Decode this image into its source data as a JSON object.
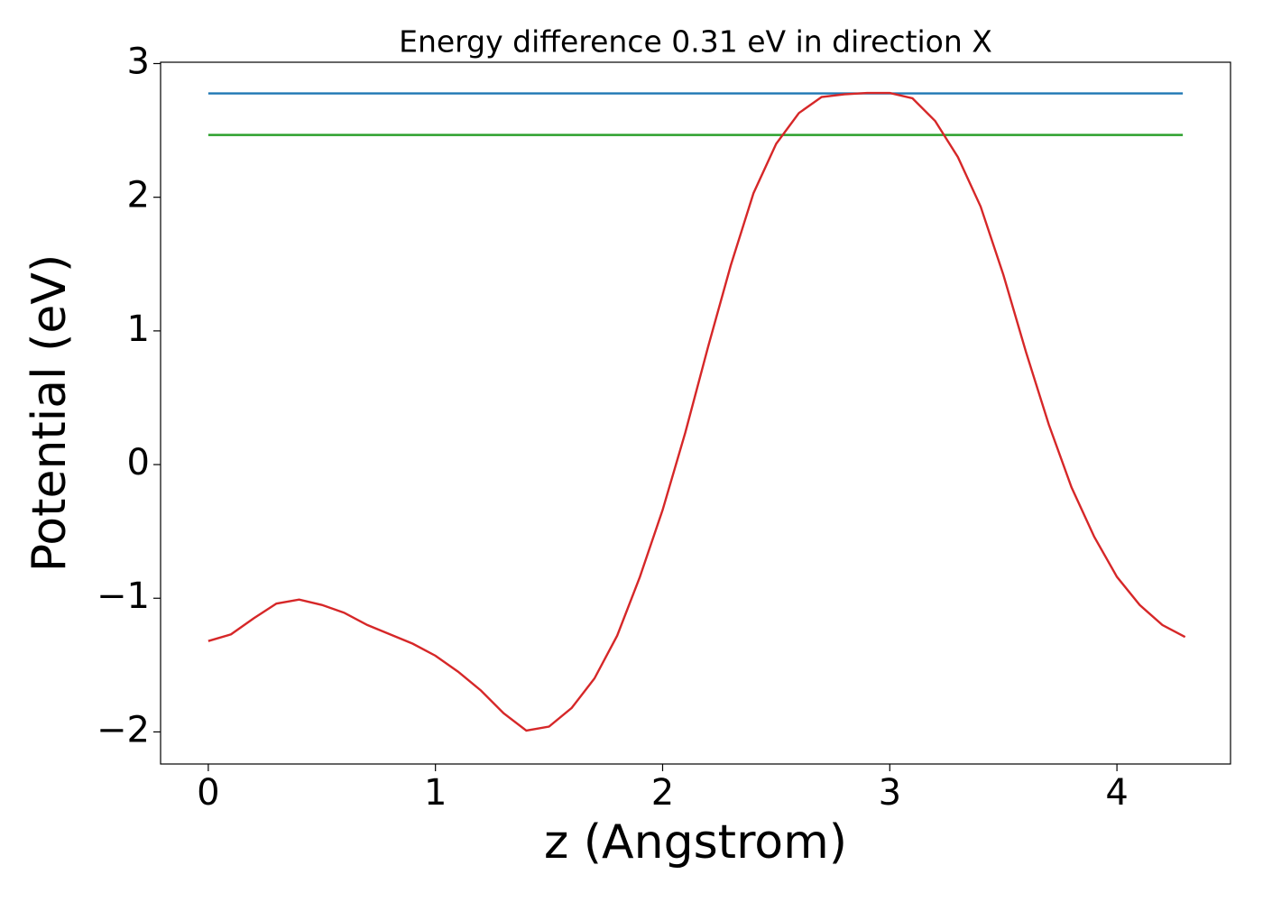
{
  "chart_data": {
    "type": "line",
    "title": "Energy difference 0.31 eV in direction X",
    "xlabel": "z (Angstrom)",
    "ylabel": "Potential (eV)",
    "xlim": [
      -0.21,
      4.5
    ],
    "ylim": [
      -2.24,
      3.01
    ],
    "xticks": [
      0,
      1,
      2,
      3,
      4
    ],
    "yticks": [
      {
        "value": -2,
        "label": "−2"
      },
      {
        "value": -1,
        "label": "−1"
      },
      0,
      1,
      2,
      3
    ],
    "series": [
      {
        "color": "#1f77b4",
        "x": [
          0,
          4.29
        ],
        "values": [
          2.777,
          2.777
        ]
      },
      {
        "color": "#2ca02c",
        "x": [
          0,
          4.29
        ],
        "values": [
          2.466,
          2.466
        ]
      },
      {
        "color": "#d62728",
        "x": [
          0,
          0.1,
          0.2,
          0.3,
          0.4,
          0.5,
          0.6,
          0.7,
          0.8,
          0.9,
          1.0,
          1.1,
          1.2,
          1.3,
          1.4,
          1.5,
          1.6,
          1.7,
          1.8,
          1.9,
          2.0,
          2.1,
          2.2,
          2.3,
          2.4,
          2.5,
          2.6,
          2.7,
          2.8,
          2.9,
          3.0,
          3.1,
          3.2,
          3.3,
          3.4,
          3.5,
          3.6,
          3.7,
          3.8,
          3.9,
          4.0,
          4.1,
          4.2,
          4.3
        ],
        "values": [
          -1.32,
          -1.27,
          -1.15,
          -1.04,
          -1.01,
          -1.05,
          -1.11,
          -1.2,
          -1.27,
          -1.34,
          -1.43,
          -1.55,
          -1.69,
          -1.86,
          -1.99,
          -1.96,
          -1.82,
          -1.6,
          -1.28,
          -0.84,
          -0.34,
          0.24,
          0.88,
          1.49,
          2.03,
          2.4,
          2.63,
          2.75,
          2.77,
          2.78,
          2.78,
          2.74,
          2.57,
          2.3,
          1.93,
          1.42,
          0.84,
          0.3,
          -0.17,
          -0.54,
          -0.84,
          -1.05,
          -1.2,
          -1.29
        ]
      }
    ]
  }
}
